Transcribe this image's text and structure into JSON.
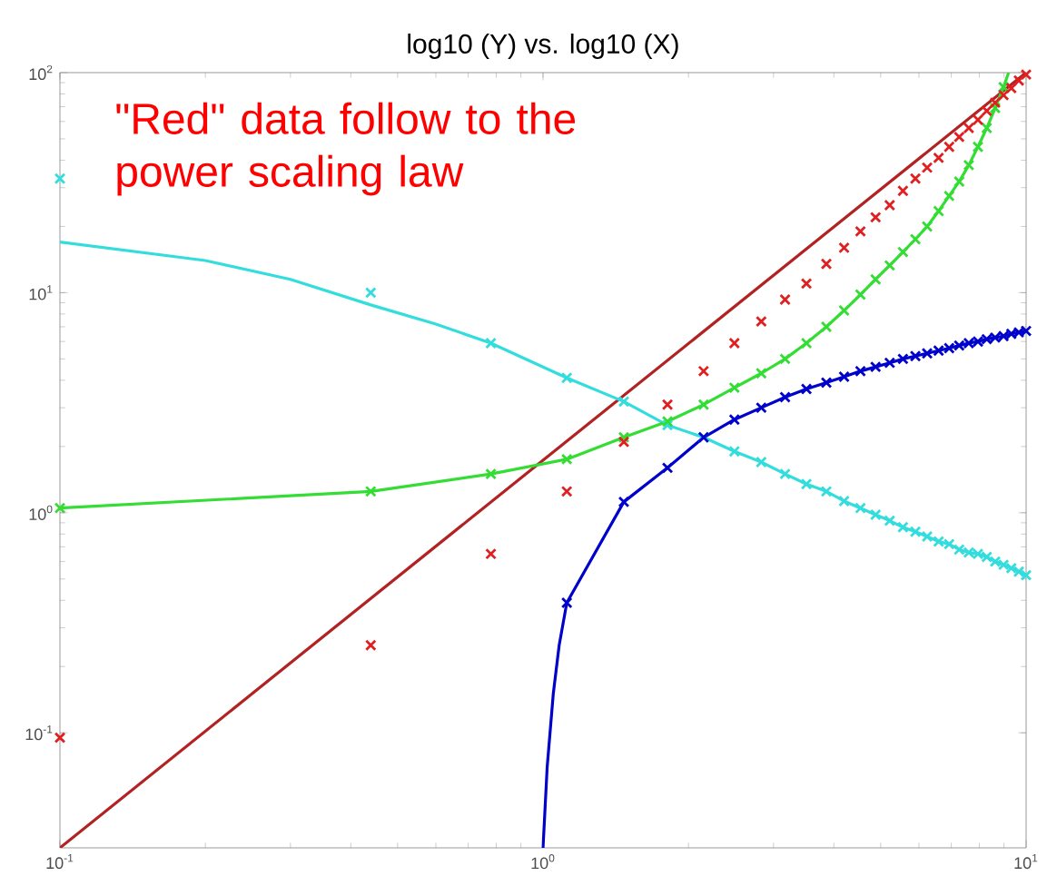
{
  "chart_data": {
    "type": "scatter",
    "title": "log10 (Y) vs. log10 (X)",
    "log": "xy",
    "marker": "cross",
    "annotations": [
      "\"Red\" data follow to the power scaling law"
    ],
    "xlim": [
      0.1,
      10
    ],
    "ylim": [
      0.03,
      100
    ],
    "xticks": [
      {
        "value": 0.1,
        "label": "10$^{-1}$"
      },
      {
        "value": 1,
        "label": "10$^{0}$"
      },
      {
        "value": 10,
        "label": "10$^{1}$"
      }
    ],
    "yticks": [
      {
        "value": 0.1,
        "label": "10$^{-1}$"
      },
      {
        "value": 1,
        "label": "10$^{0}$"
      },
      {
        "value": 10,
        "label": "10$^{1}$"
      },
      {
        "value": 100,
        "label": "10$^{2}$"
      }
    ],
    "x": [
      0.1,
      0.44,
      0.78,
      1.12,
      1.47,
      1.81,
      2.15,
      2.49,
      2.83,
      3.17,
      3.51,
      3.86,
      4.2,
      4.54,
      4.88,
      5.22,
      5.56,
      5.9,
      6.24,
      6.59,
      6.93,
      7.27,
      7.61,
      7.95,
      8.29,
      8.63,
      8.98,
      9.32,
      9.66,
      10.0
    ],
    "series": [
      {
        "type": "line",
        "marker": "none",
        "color": "#b22222",
        "x": [
          0.1,
          10
        ],
        "values": [
          0.03,
          100
        ]
      },
      {
        "type": "line",
        "marker": "none",
        "color": "#33dddd",
        "x": [
          0.1,
          0.2,
          0.3,
          0.44,
          0.6,
          0.78
        ],
        "values": [
          17,
          14,
          11.5,
          8.8,
          7.2,
          5.9
        ]
      },
      {
        "type": "line",
        "color": "#33dddd",
        "x": [
          0.78,
          1.12,
          1.47,
          1.81,
          2.15,
          2.49,
          2.83,
          3.17,
          3.51,
          3.86,
          4.2,
          4.54,
          4.88,
          5.22,
          5.56,
          5.9,
          6.24,
          6.59,
          6.93,
          7.27,
          7.61,
          7.95,
          8.29,
          8.63,
          8.98,
          9.32,
          9.66,
          10.0
        ],
        "values": [
          5.9,
          4.1,
          3.2,
          2.5,
          2.2,
          1.9,
          1.7,
          1.5,
          1.35,
          1.25,
          1.13,
          1.05,
          0.98,
          0.92,
          0.86,
          0.82,
          0.78,
          0.74,
          0.72,
          0.68,
          0.66,
          0.65,
          0.63,
          0.6,
          0.58,
          0.56,
          0.54,
          0.52
        ]
      },
      {
        "color": "#33dddd",
        "x": [
          0.1,
          0.44
        ],
        "values": [
          33,
          10
        ]
      },
      {
        "type": "line",
        "color": "#33dd33",
        "x": [
          0.1,
          0.44,
          0.78,
          1.12,
          1.47,
          1.81,
          2.15,
          2.49,
          2.83,
          3.17,
          3.51,
          3.86,
          4.2,
          4.54,
          4.88,
          5.22,
          5.56,
          5.9,
          6.24,
          6.59,
          6.93,
          7.27,
          7.61,
          7.95,
          8.29,
          8.63,
          8.98
        ],
        "values": [
          1.05,
          1.25,
          1.5,
          1.75,
          2.2,
          2.6,
          3.1,
          3.7,
          4.3,
          5.0,
          5.9,
          7.0,
          8.3,
          9.8,
          11.5,
          13.3,
          15.3,
          17.5,
          20,
          23.5,
          27.5,
          32,
          38,
          46,
          56,
          69,
          86
        ]
      },
      {
        "type": "line",
        "marker": "none",
        "color": "#33dd33",
        "x": [
          8.98,
          9.2
        ],
        "values": [
          86,
          100
        ]
      },
      {
        "type": "line",
        "marker": "none",
        "color": "#0000cc",
        "x": [
          1.0,
          1.02,
          1.05,
          1.08,
          1.12
        ],
        "values": [
          0.03,
          0.07,
          0.15,
          0.25,
          0.39
        ]
      },
      {
        "type": "line",
        "color": "#0000cc",
        "x": [
          1.12,
          1.47,
          1.81,
          2.15,
          2.49,
          2.83,
          3.17,
          3.51,
          3.86,
          4.2,
          4.54,
          4.88,
          5.22,
          5.56,
          5.9,
          6.24,
          6.59,
          6.93,
          7.27,
          7.61,
          7.95,
          8.29,
          8.63,
          8.98,
          9.32,
          9.66,
          10.0
        ],
        "values": [
          0.39,
          1.12,
          1.6,
          2.2,
          2.65,
          3.0,
          3.35,
          3.65,
          3.9,
          4.15,
          4.4,
          4.6,
          4.8,
          5.0,
          5.15,
          5.3,
          5.45,
          5.6,
          5.75,
          5.9,
          6.0,
          6.15,
          6.25,
          6.35,
          6.5,
          6.6,
          6.7
        ]
      },
      {
        "color": "#e02020",
        "values": [
          0.095,
          0.25,
          0.65,
          1.25,
          2.1,
          3.1,
          4.4,
          5.9,
          7.4,
          9.3,
          11,
          13.5,
          16,
          19,
          22,
          25,
          29,
          33,
          37,
          41,
          46,
          51,
          56,
          61,
          67,
          73,
          79,
          85,
          92,
          98
        ]
      }
    ]
  }
}
